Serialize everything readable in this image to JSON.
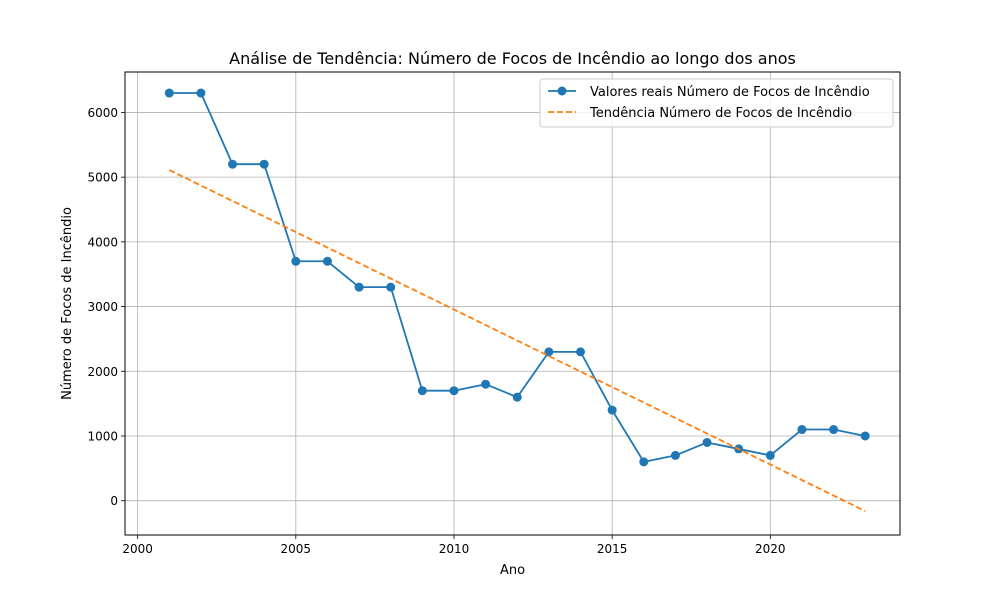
{
  "chart_data": {
    "type": "line",
    "title": "Análise de Tendência: Número de Focos de Incêndio ao longo dos anos",
    "xlabel": "Ano",
    "ylabel": "Número de Focos de Incêndio",
    "xlim": [
      1999.6,
      2024.1
    ],
    "ylim": [
      -530,
      6625
    ],
    "xticks": [
      2000,
      2005,
      2010,
      2015,
      2020
    ],
    "yticks": [
      0,
      1000,
      2000,
      3000,
      4000,
      5000,
      6000
    ],
    "grid": true,
    "legend_position": "upper right",
    "series": [
      {
        "name": "Valores reais Número de Focos de Incêndio",
        "style": "solid-markers",
        "color": "#1f77b4",
        "x": [
          2001,
          2002,
          2003,
          2004,
          2005,
          2006,
          2007,
          2008,
          2009,
          2010,
          2011,
          2012,
          2013,
          2014,
          2015,
          2016,
          2017,
          2018,
          2019,
          2020,
          2021,
          2022,
          2023
        ],
        "y": [
          6300,
          6300,
          5200,
          5200,
          3700,
          3700,
          3300,
          3300,
          1700,
          1700,
          1800,
          1600,
          2300,
          2300,
          1400,
          600,
          700,
          900,
          800,
          700,
          1100,
          1100,
          1000
        ]
      },
      {
        "name": "Tendência Número de Focos de Incêndio",
        "style": "dashed",
        "color": "#ff7f0e",
        "x": [
          2001,
          2023
        ],
        "y": [
          5110,
          -160
        ]
      }
    ]
  }
}
